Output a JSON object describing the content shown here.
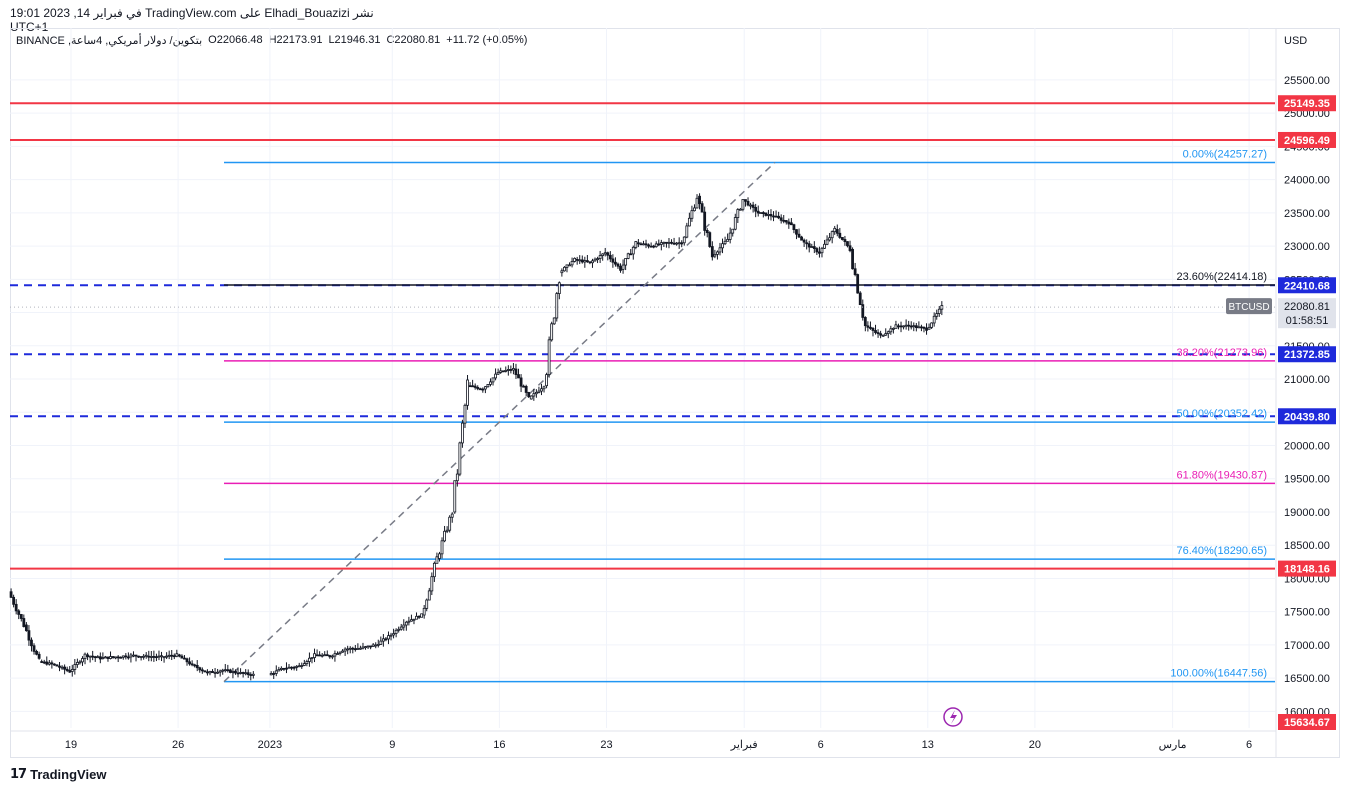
{
  "header": {
    "text": "نشر Elhadi_Bouazizi على TradingView.com في فبراير 14, 2023 19:01 UTC+1"
  },
  "symbol": {
    "name": "بتكوين/ دولار أمريكي, 4ساعة, BINANCE",
    "open": "O22066.48",
    "high": "H22173.91",
    "low": "L21946.31",
    "close": "C22080.81",
    "change": "+11.72 (+0.05%)"
  },
  "currency": "USD",
  "footer": {
    "logo_text": "TradingView"
  },
  "colors": {
    "red": "#f23645",
    "blue_fib": "#2196f3",
    "magenta_fib": "#e91eb5",
    "dark_blue_dash": "#1e2adb",
    "black": "#131722",
    "grid": "#f0f3fa"
  },
  "chart_data": {
    "type": "candlestick",
    "y_axis": {
      "range": [
        15750,
        25950
      ],
      "ticks": [
        "16000.00",
        "16500.00",
        "17000.00",
        "17500.00",
        "18000.00",
        "18500.00",
        "19000.00",
        "19500.00",
        "20000.00",
        "20500.00",
        "21000.00",
        "21500.00",
        "22000.00",
        "22500.00",
        "23000.00",
        "23500.00",
        "24000.00",
        "24500.00",
        "25000.00",
        "25500.00"
      ]
    },
    "x_axis": {
      "labels": [
        {
          "label": "19",
          "date": "2022-12-19"
        },
        {
          "label": "26",
          "date": "2022-12-26"
        },
        {
          "label": "2023",
          "date": "2023-01-01"
        },
        {
          "label": "9",
          "date": "2023-01-09"
        },
        {
          "label": "16",
          "date": "2023-01-16"
        },
        {
          "label": "23",
          "date": "2023-01-23"
        },
        {
          "label": "فبراير",
          "date": "2023-02-01"
        },
        {
          "label": "6",
          "date": "2023-02-06"
        },
        {
          "label": "13",
          "date": "2023-02-13"
        },
        {
          "label": "20",
          "date": "2023-02-20"
        },
        {
          "label": "مارس",
          "date": "2023-03-01"
        },
        {
          "label": "6",
          "date": "2023-03-06"
        }
      ]
    },
    "price_path": [
      [
        "2022-12-15",
        17800
      ],
      [
        "2022-12-16",
        17300
      ],
      [
        "2022-12-17",
        16750
      ],
      [
        "2022-12-18",
        16700
      ],
      [
        "2022-12-19",
        16600
      ],
      [
        "2022-12-20",
        16850
      ],
      [
        "2022-12-21",
        16800
      ],
      [
        "2022-12-22",
        16820
      ],
      [
        "2022-12-23",
        16840
      ],
      [
        "2022-12-24",
        16830
      ],
      [
        "2022-12-25",
        16820
      ],
      [
        "2022-12-26",
        16850
      ],
      [
        "2022-12-27",
        16700
      ],
      [
        "2022-12-28",
        16580
      ],
      [
        "2022-12-29",
        16620
      ],
      [
        "2022-12-30",
        16580
      ],
      [
        "2023-01-01",
        16550
      ],
      [
        "2023-01-02",
        16650
      ],
      [
        "2023-01-03",
        16680
      ],
      [
        "2023-01-04",
        16850
      ],
      [
        "2023-01-05",
        16830
      ],
      [
        "2023-01-06",
        16940
      ],
      [
        "2023-01-07",
        16950
      ],
      [
        "2023-01-08",
        17000
      ],
      [
        "2023-01-09",
        17150
      ],
      [
        "2023-01-10",
        17350
      ],
      [
        "2023-01-11",
        17450
      ],
      [
        "2023-01-12",
        18300
      ],
      [
        "2023-01-13",
        19000
      ],
      [
        "2023-01-14",
        20900
      ],
      [
        "2023-01-15",
        20850
      ],
      [
        "2023-01-16",
        21100
      ],
      [
        "2023-01-17",
        21150
      ],
      [
        "2023-01-18",
        20700
      ],
      [
        "2023-01-19",
        20900
      ],
      [
        "2023-01-20",
        22600
      ],
      [
        "2023-01-21",
        22800
      ],
      [
        "2023-01-22",
        22750
      ],
      [
        "2023-01-23",
        22900
      ],
      [
        "2023-01-24",
        22650
      ],
      [
        "2023-01-25",
        23050
      ],
      [
        "2023-01-26",
        23000
      ],
      [
        "2023-01-27",
        23050
      ],
      [
        "2023-01-28",
        23050
      ],
      [
        "2023-01-29",
        23750
      ],
      [
        "2023-01-30",
        22850
      ],
      [
        "2023-01-31",
        23100
      ],
      [
        "2023-02-01",
        23700
      ],
      [
        "2023-02-02",
        23500
      ],
      [
        "2023-02-03",
        23450
      ],
      [
        "2023-02-04",
        23350
      ],
      [
        "2023-02-05",
        23050
      ],
      [
        "2023-02-06",
        22900
      ],
      [
        "2023-02-07",
        23250
      ],
      [
        "2023-02-08",
        22950
      ],
      [
        "2023-02-09",
        21800
      ],
      [
        "2023-02-10",
        21650
      ],
      [
        "2023-02-11",
        21800
      ],
      [
        "2023-02-12",
        21800
      ],
      [
        "2023-02-13",
        21750
      ],
      [
        "2023-02-14",
        22080
      ]
    ],
    "price_labels": [
      {
        "value": 25149.35,
        "text": "25149.35",
        "color": "#f23645",
        "style": "solid"
      },
      {
        "value": 24596.49,
        "text": "24596.49",
        "color": "#f23645",
        "style": "solid"
      },
      {
        "value": 22410.68,
        "text": "22410.68",
        "color": "#1e2adb",
        "style": "dashed"
      },
      {
        "value": 21372.85,
        "text": "21372.85",
        "color": "#1e2adb",
        "style": "dashed"
      },
      {
        "value": 20439.8,
        "text": "20439.80",
        "color": "#1e2adb",
        "style": "dashed"
      },
      {
        "value": 18148.16,
        "text": "18148.16",
        "color": "#f23645",
        "style": "solid"
      },
      {
        "value": 15634.67,
        "text": "15634.67",
        "color": "#f23645",
        "style": "solid"
      }
    ],
    "last_price": {
      "value": 22080.81,
      "text": "22080.81",
      "timer": "01:58:51",
      "ticker": "BTCUSD"
    },
    "fibonacci": [
      {
        "value": 24257.27,
        "text": "0.00%(24257.27)",
        "color": "#2196f3"
      },
      {
        "value": 22414.18,
        "text": "23.60%(22414.18)",
        "color": "#131722"
      },
      {
        "value": 21273.96,
        "text": "38.20%(21273.96)",
        "color": "#e91eb5"
      },
      {
        "value": 20352.42,
        "text": "50.00%(20352.42)",
        "color": "#2196f3"
      },
      {
        "value": 19430.87,
        "text": "61.80%(19430.87)",
        "color": "#e91eb5"
      },
      {
        "value": 18290.65,
        "text": "76.40%(18290.65)",
        "color": "#2196f3"
      },
      {
        "value": 16447.56,
        "text": "100.00%(16447.56)",
        "color": "#2196f3"
      }
    ],
    "trend_line": {
      "from": [
        "2022-12-29",
        16447.56
      ],
      "to": [
        "2023-02-03",
        24257.27
      ]
    }
  }
}
